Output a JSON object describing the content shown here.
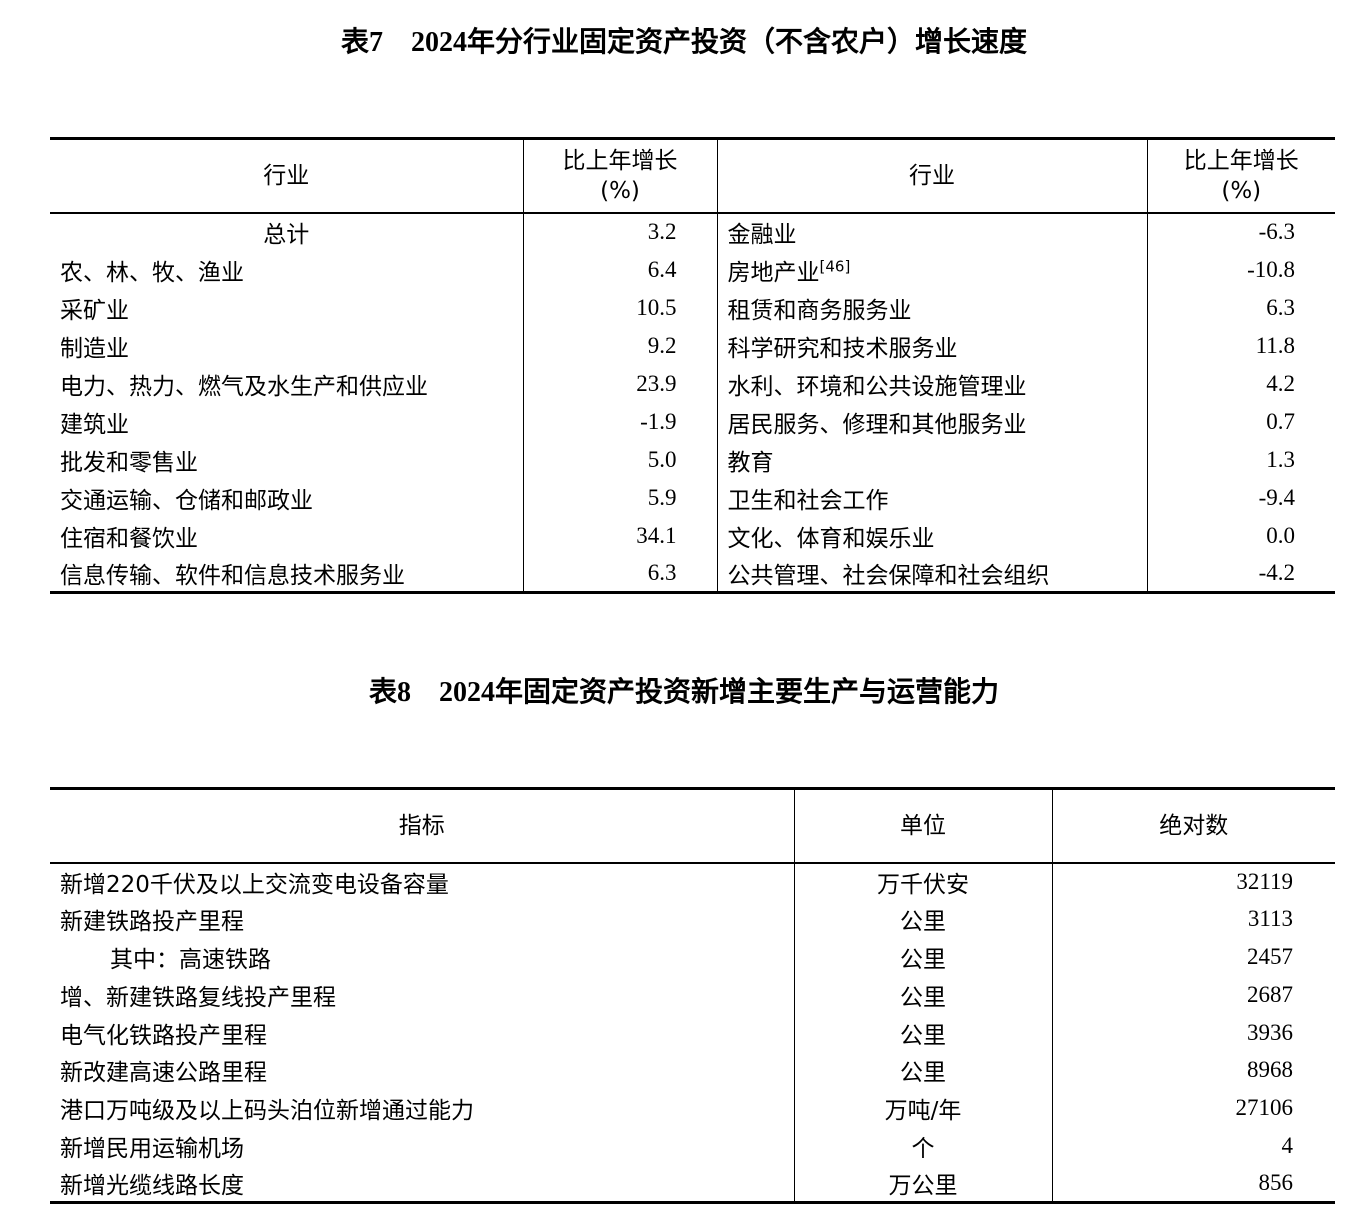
{
  "table7": {
    "title": "表7　2024年分行业固定资产投资（不含农户）增长速度",
    "headers": {
      "industry": "行业",
      "growth_line1": "比上年增长",
      "growth_line2": "(%)"
    },
    "rows": [
      {
        "left": "总计",
        "lv": "3.2",
        "right": "金融业",
        "rv": "-6.3",
        "center": true
      },
      {
        "left": "农、林、牧、渔业",
        "lv": "6.4",
        "right": "房地产业",
        "rsup": "[46]",
        "rv": "-10.8"
      },
      {
        "left": "采矿业",
        "lv": "10.5",
        "right": "租赁和商务服务业",
        "rv": "6.3"
      },
      {
        "left": "制造业",
        "lv": "9.2",
        "right": "科学研究和技术服务业",
        "rv": "11.8"
      },
      {
        "left": "电力、热力、燃气及水生产和供应业",
        "lv": "23.9",
        "right": "水利、环境和公共设施管理业",
        "rv": "4.2"
      },
      {
        "left": "建筑业",
        "lv": "-1.9",
        "right": "居民服务、修理和其他服务业",
        "rv": "0.7"
      },
      {
        "left": "批发和零售业",
        "lv": "5.0",
        "right": "教育",
        "rv": "1.3"
      },
      {
        "left": "交通运输、仓储和邮政业",
        "lv": "5.9",
        "right": "卫生和社会工作",
        "rv": "-9.4"
      },
      {
        "left": "住宿和餐饮业",
        "lv": "34.1",
        "right": "文化、体育和娱乐业",
        "rv": "0.0"
      },
      {
        "left": "信息传输、软件和信息技术服务业",
        "lv": "6.3",
        "right": "公共管理、社会保障和社会组织",
        "rv": "-4.2"
      }
    ]
  },
  "table8": {
    "title": "表8　2024年固定资产投资新增主要生产与运营能力",
    "headers": {
      "indicator": "指标",
      "unit": "单位",
      "value": "绝对数"
    },
    "rows": [
      {
        "name": "新增220千伏及以上交流变电设备容量",
        "unit": "万千伏安",
        "value": "32119"
      },
      {
        "name": "新建铁路投产里程",
        "unit": "公里",
        "value": "3113"
      },
      {
        "name": "其中：高速铁路",
        "unit": "公里",
        "value": "2457",
        "indent": true
      },
      {
        "name": "增、新建铁路复线投产里程",
        "unit": "公里",
        "value": "2687"
      },
      {
        "name": "电气化铁路投产里程",
        "unit": "公里",
        "value": "3936"
      },
      {
        "name": "新改建高速公路里程",
        "unit": "公里",
        "value": "8968"
      },
      {
        "name": "港口万吨级及以上码头泊位新增通过能力",
        "unit": "万吨/年",
        "value": "27106"
      },
      {
        "name": "新增民用运输机场",
        "unit": "个",
        "value": "4"
      },
      {
        "name": "新增光缆线路长度",
        "unit": "万公里",
        "value": "856"
      }
    ]
  }
}
